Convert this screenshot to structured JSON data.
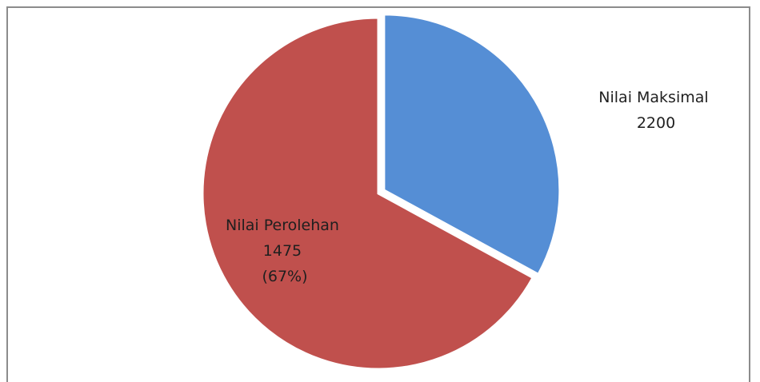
{
  "chart_data": {
    "type": "pie",
    "slices": [
      {
        "name": "Nilai Maksimal",
        "value": 725,
        "label_lines": [
          "Nilai Maksimal",
          "2200"
        ],
        "color": "#558ed5",
        "exploded": true
      },
      {
        "name": "Nilai Perolehan",
        "value": 1475,
        "label_lines": [
          "Nilai Perolehan",
          "1475",
          "(67%)"
        ],
        "color": "#c0504d",
        "exploded": false
      }
    ],
    "start_angle_deg": 0,
    "direction": "clockwise",
    "legend": "none"
  }
}
